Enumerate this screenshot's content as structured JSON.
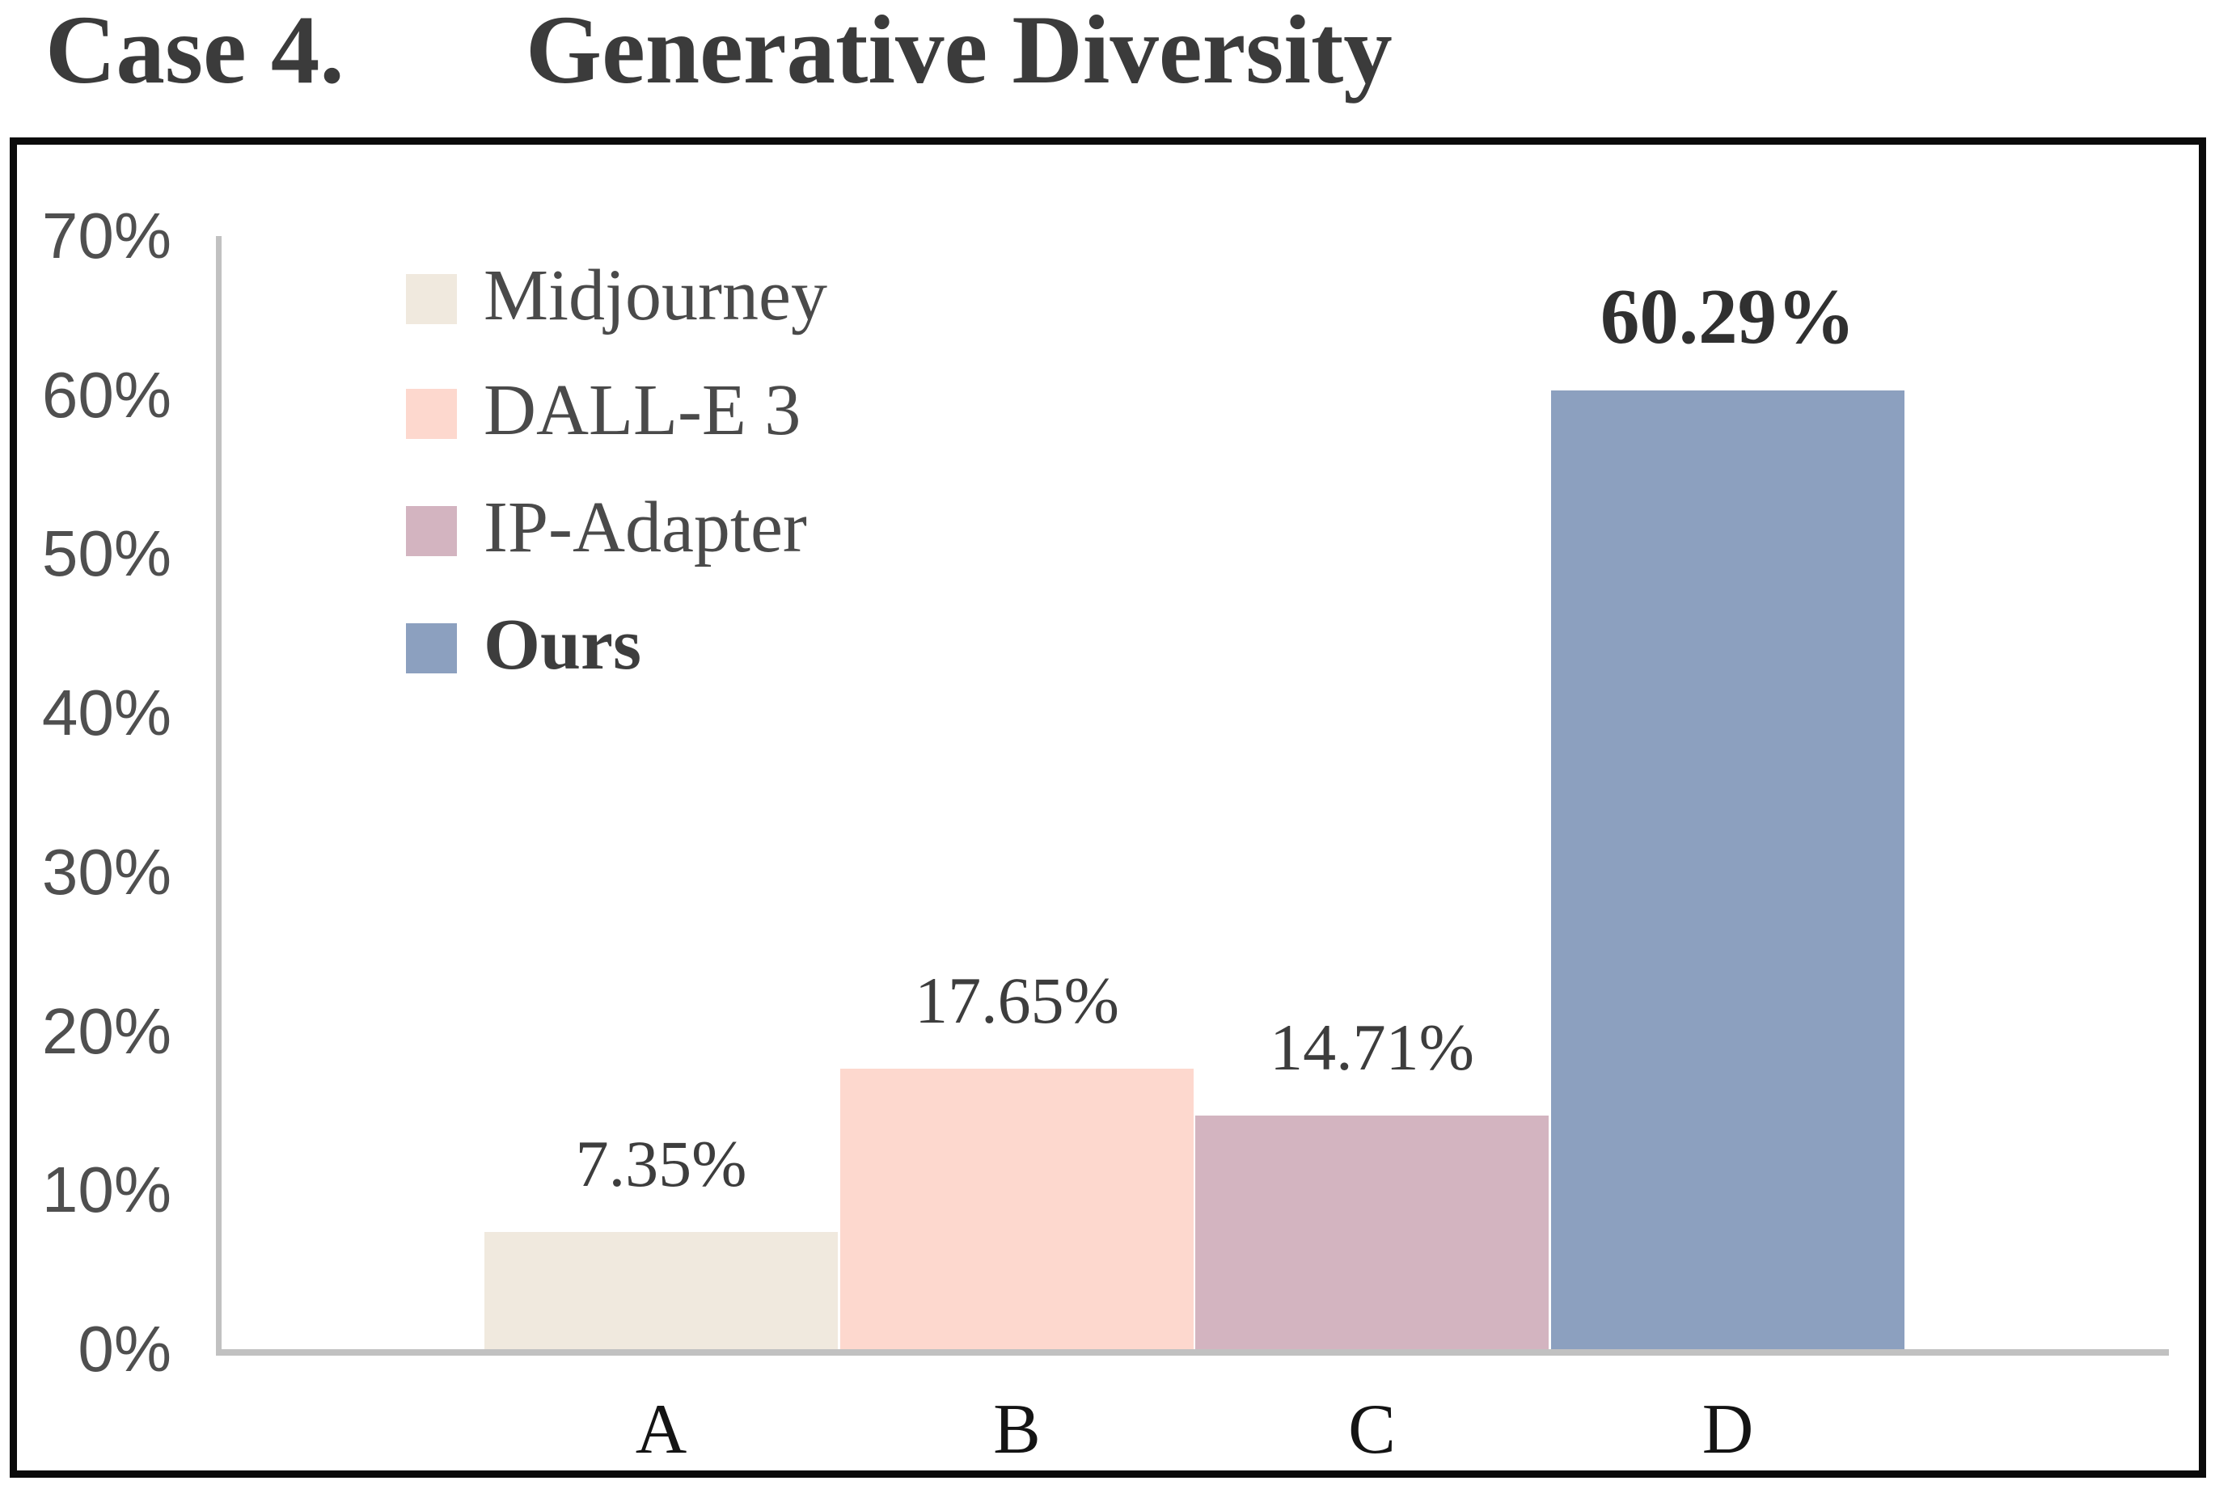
{
  "title": {
    "case_label": "Case 4.",
    "main": "Generative Diversity"
  },
  "chart_data": {
    "type": "bar",
    "title": "Case 4. Generative Diversity",
    "categories": [
      "A",
      "B",
      "C",
      "D"
    ],
    "values": [
      7.35,
      17.65,
      14.71,
      60.29
    ],
    "bar_labels": [
      "7.35%",
      "17.65%",
      "14.71%",
      "60.29%"
    ],
    "series_names": [
      "Midjourney",
      "DALL-E 3",
      "IP-Adapter",
      "Ours"
    ],
    "bar_colors": [
      "#F0E9DE",
      "#FDD8CE",
      "#D3B4C0",
      "#8CA0BF"
    ],
    "emphasized_series": "Ours",
    "xlabel": "",
    "ylabel": "",
    "ylim": [
      0,
      70
    ],
    "ytick_labels_top_to_bottom": [
      "70%",
      "60%",
      "50%",
      "40%",
      "30%",
      "20%",
      "10%",
      "0%"
    ],
    "grid": false,
    "legend_position": "top-left",
    "plot_background": "#FFFFFF"
  },
  "legend": {
    "items": [
      {
        "label": "Midjourney",
        "color": "#F0E9DE",
        "bold": false
      },
      {
        "label": "DALL-E 3",
        "color": "#FDD8CE",
        "bold": false
      },
      {
        "label": "IP-Adapter",
        "color": "#D3B4C0",
        "bold": false
      },
      {
        "label": "Ours",
        "color": "#8CA0BF",
        "bold": true
      }
    ]
  },
  "colors": {
    "axis_line": "#C1C1C1",
    "frame_border": "#0B0B0B",
    "title_text": "#3B3B3B",
    "ytick_text": "#4F4F4F",
    "bar_label_text": "#3D3D3D",
    "category_text": "#141414"
  }
}
